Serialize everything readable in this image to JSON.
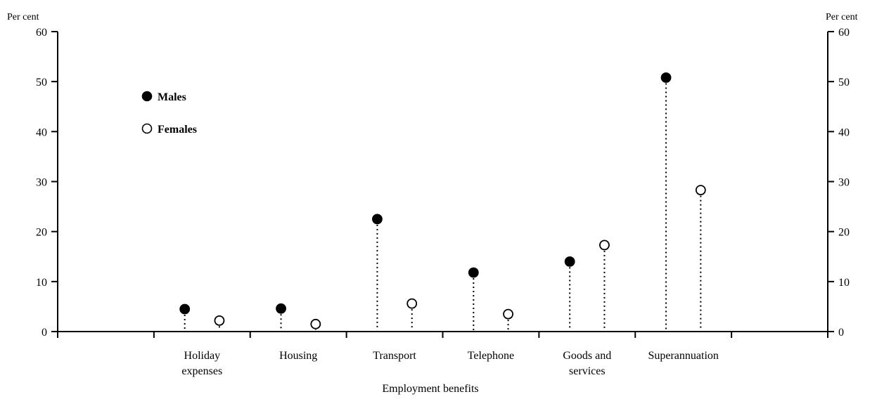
{
  "chart_data": {
    "type": "scatter",
    "title": "",
    "xlabel": "Employment benefits",
    "ylabel_left": "Per cent",
    "ylabel_right": "Per cent",
    "ylim": [
      0,
      60
    ],
    "yticks": [
      "0",
      "10",
      "20",
      "30",
      "40",
      "50",
      "60"
    ],
    "categories": [
      [
        "Holiday",
        "expenses"
      ],
      [
        "Housing"
      ],
      [
        "Transport"
      ],
      [
        "Telephone"
      ],
      [
        "Goods and",
        "services"
      ],
      [
        "Superannuation"
      ]
    ],
    "series": [
      {
        "name": "Males",
        "marker": "filled-circle",
        "color": "#000000",
        "values": [
          4.5,
          4.6,
          22.5,
          11.8,
          14,
          50.8
        ]
      },
      {
        "name": "Females",
        "marker": "open-circle",
        "color": "#000000",
        "values": [
          2.2,
          1.5,
          5.6,
          3.5,
          17.3,
          28.3
        ]
      }
    ],
    "legend_position": "top-left",
    "grid": false
  }
}
